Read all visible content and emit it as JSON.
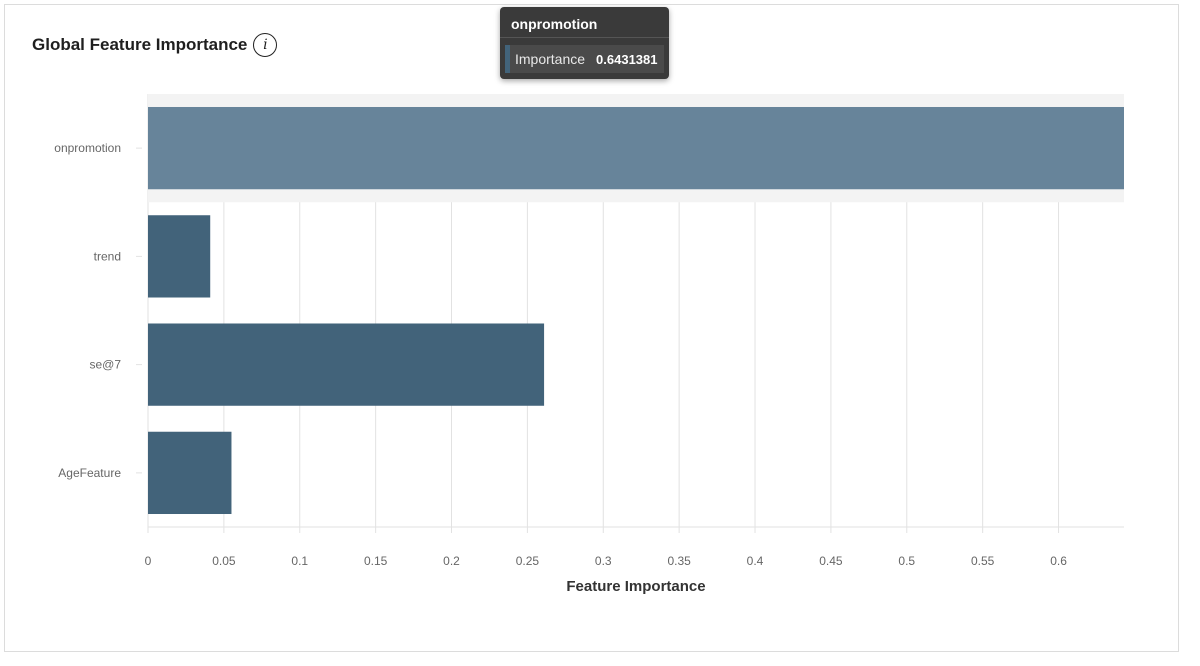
{
  "header": {
    "title": "Global Feature Importance",
    "info_icon": "i"
  },
  "tooltip": {
    "title": "onpromotion",
    "label": "Importance",
    "value": "0.6431381"
  },
  "colors": {
    "bar": "#42637a",
    "bar_highlight": "#67849a",
    "hover_band": "#f3f3f3",
    "axis": "#e2e2e2",
    "tick_text": "#666666"
  },
  "chart_data": {
    "type": "bar",
    "orientation": "horizontal",
    "categories": [
      "onpromotion",
      "trend",
      "se@7",
      "AgeFeature"
    ],
    "values": [
      0.6431381,
      0.041,
      0.261,
      0.055
    ],
    "highlighted": "onpromotion",
    "xlabel": "Feature Importance",
    "ylabel": "",
    "xlim": [
      0,
      0.6431381
    ],
    "xticks": [
      "0",
      "0.05",
      "0.1",
      "0.15",
      "0.2",
      "0.25",
      "0.3",
      "0.35",
      "0.4",
      "0.45",
      "0.5",
      "0.55",
      "0.6"
    ],
    "grid": true
  }
}
